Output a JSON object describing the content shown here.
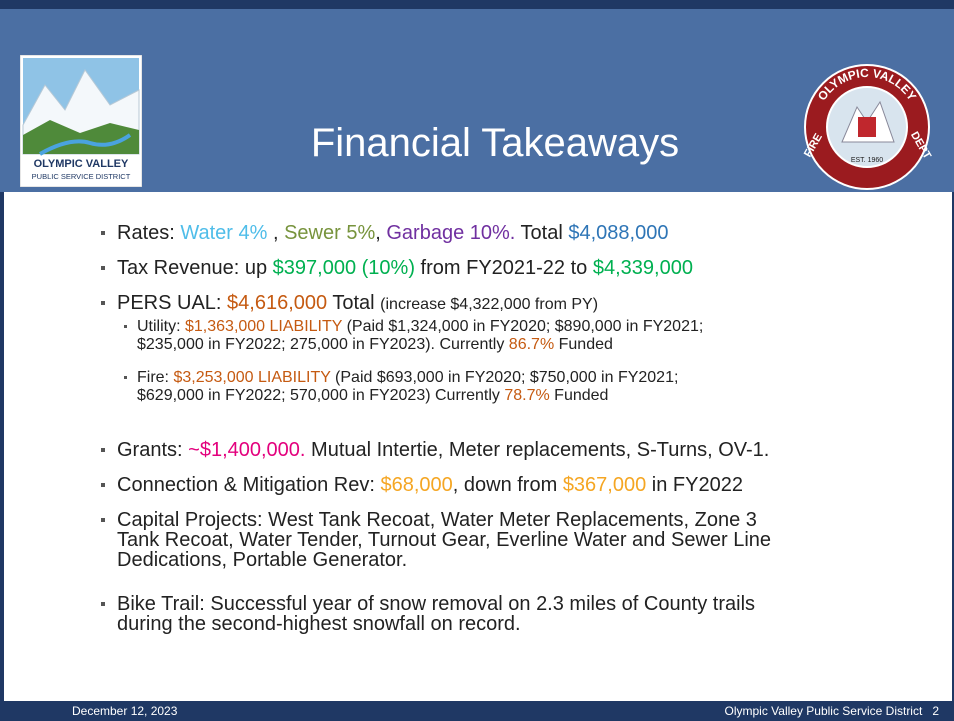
{
  "header": {
    "title": "Financial Takeaways",
    "left_logo": {
      "line1": "OLYMPIC VALLEY",
      "line2": "PUBLIC SERVICE DISTRICT"
    },
    "right_logo": {
      "top": "OLYMPIC VALLEY",
      "left": "FIRE",
      "right": "DEPT",
      "est": "EST. 1960"
    }
  },
  "bullets": [
    {
      "level": 1,
      "lines": [
        [
          {
            "text": "Rates: "
          },
          {
            "text": "Water 4%",
            "color": "#4fbde9"
          },
          {
            "text": " , "
          },
          {
            "text": "Sewer 5%",
            "color": "#77933c"
          },
          {
            "text": ", "
          },
          {
            "text": "Garbage 10%.",
            "color": "#7030a0"
          },
          {
            "text": " Total "
          },
          {
            "text": "$4,088,000",
            "color": "#2e75b6"
          }
        ]
      ]
    },
    {
      "level": 1,
      "lines": [
        [
          {
            "text": "Tax Revenue: up "
          },
          {
            "text": "$397,000 (10%)",
            "color": "#00b050"
          },
          {
            "text": " from FY2021-22 to "
          },
          {
            "text": "$4,339,000",
            "color": "#00b050"
          }
        ]
      ]
    },
    {
      "level": 1,
      "lines": [
        [
          {
            "text": "PERS UAL: "
          },
          {
            "text": "$4,616,000",
            "color": "#c55a11"
          },
          {
            "text": " Total "
          },
          {
            "text": "(increase $4,322,000 from PY)",
            "small": true
          }
        ]
      ]
    },
    {
      "level": 2,
      "lines": [
        [
          {
            "text": "Utility: "
          },
          {
            "text": "$1,363,000 LIABILITY",
            "color": "#c55a11"
          },
          {
            "text": " (Paid $1,324,000 in FY2020; $890,000 in FY2021;"
          }
        ],
        [
          {
            "text": "$235,000 in FY2022; 275,000 in FY2023). Currently "
          },
          {
            "text": "86.7%",
            "color": "#c55a11"
          },
          {
            "text": " Funded"
          }
        ]
      ]
    },
    {
      "level": 2,
      "lines": [
        [
          {
            "text": "Fire: "
          },
          {
            "text": "$3,253,000 LIABILITY",
            "color": "#c55a11"
          },
          {
            "text": " (Paid $693,000 in FY2020; $750,000 in FY2021;"
          }
        ],
        [
          {
            "text": "$629,000 in FY2022; 570,000 in FY2023) Currently "
          },
          {
            "text": "78.7%",
            "color": "#c55a11"
          },
          {
            "text": " Funded"
          }
        ]
      ]
    },
    {
      "level": 1,
      "lines": [
        [
          {
            "text": "Grants: "
          },
          {
            "text": "~$1,400,000.",
            "color": "#e3007d"
          },
          {
            "text": " Mutual Intertie, Meter replacements, S-Turns, OV-1."
          }
        ]
      ]
    },
    {
      "level": 1,
      "lines": [
        [
          {
            "text": "Connection & Mitigation Rev: "
          },
          {
            "text": "$68,000",
            "color": "#f5a623"
          },
          {
            "text": ", down from "
          },
          {
            "text": "$367,000",
            "color": "#f5a623"
          },
          {
            "text": " in FY2022"
          }
        ]
      ]
    },
    {
      "level": 1,
      "lines": [
        [
          {
            "text": "Capital Projects: West Tank Recoat, Water Meter Replacements, Zone 3"
          }
        ],
        [
          {
            "text": "Tank Recoat, Water Tender, Turnout Gear, Everline Water and Sewer Line"
          }
        ],
        [
          {
            "text": "Dedications, Portable Generator."
          }
        ]
      ]
    },
    {
      "level": 1,
      "lines": [
        [
          {
            "text": "Bike Trail: Successful year of snow removal on 2.3 miles of County trails"
          }
        ],
        [
          {
            "text": "during the second-highest snowfall on record."
          }
        ]
      ]
    }
  ],
  "footer": {
    "date": "December 12, 2023",
    "org": "Olympic Valley Public Service District",
    "page": "2"
  }
}
